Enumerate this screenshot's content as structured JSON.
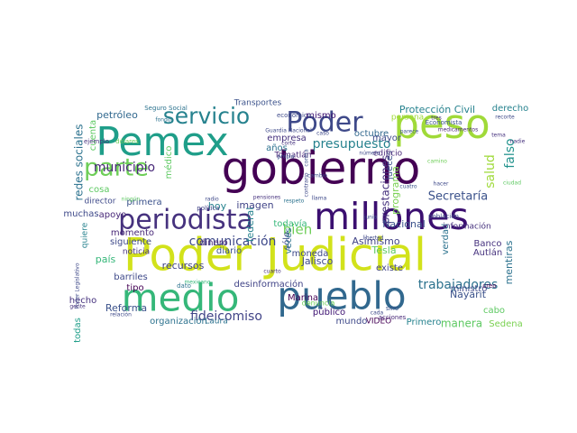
{
  "wordcloud": {
    "words": [
      {
        "text": "gobierno",
        "color": "#440154"
      },
      {
        "text": "Poder Judicial",
        "color": "#d2e21b"
      },
      {
        "text": "millones",
        "color": "#3b0f70"
      },
      {
        "text": "medio",
        "color": "#35b779"
      },
      {
        "text": "pueblo",
        "color": "#31688e"
      },
      {
        "text": "Pemex",
        "color": "#1f9e89"
      },
      {
        "text": "peso",
        "color": "#a0da39"
      },
      {
        "text": "periodista",
        "color": "#46327e"
      },
      {
        "text": "servicio",
        "color": "#26828e"
      },
      {
        "text": "parte",
        "color": "#6ece58"
      },
      {
        "text": "Poder",
        "color": "#3e4989"
      },
      {
        "text": "municipio",
        "color": "#482878"
      },
      {
        "text": "presupuesto",
        "color": "#26828e"
      },
      {
        "text": "comunicación",
        "color": "#3e4989"
      },
      {
        "text": "bien",
        "color": "#6ece58"
      },
      {
        "text": "salud",
        "color": "#9fda3a"
      },
      {
        "text": "falso",
        "color": "#20928c"
      },
      {
        "text": "Secretaría",
        "color": "#3b528b"
      },
      {
        "text": "trabajadores",
        "color": "#2c728e"
      },
      {
        "text": "fideicomiso",
        "color": "#414487"
      },
      {
        "text": "Protección Civil",
        "color": "#26828e"
      },
      {
        "text": "mismo",
        "color": "#3b0f70"
      },
      {
        "text": "octubre",
        "color": "#31688e"
      },
      {
        "text": "mayor",
        "color": "#3e4989"
      },
      {
        "text": "empresa",
        "color": "#46327e"
      },
      {
        "text": "años",
        "color": "#2c728e"
      },
      {
        "text": "Tomatlán",
        "color": "#482878"
      },
      {
        "text": "Transportes",
        "color": "#3b528b"
      },
      {
        "text": "petróleo",
        "color": "#31688e"
      },
      {
        "text": "redes sociales",
        "color": "#2c728e"
      },
      {
        "text": "cuenta",
        "color": "#5ec962"
      },
      {
        "text": "cosa",
        "color": "#5ec962"
      },
      {
        "text": "director",
        "color": "#3e4989"
      },
      {
        "text": "primera",
        "color": "#3b528b"
      },
      {
        "text": "muchas",
        "color": "#3e4989"
      },
      {
        "text": "apoyo",
        "color": "#482878"
      },
      {
        "text": "quiere",
        "color": "#26828e"
      },
      {
        "text": "momento",
        "color": "#482878"
      },
      {
        "text": "siguiente",
        "color": "#3e4989"
      },
      {
        "text": "noticia",
        "color": "#46327e"
      },
      {
        "text": "país",
        "color": "#35b779"
      },
      {
        "text": "recursos",
        "color": "#414487"
      },
      {
        "text": "tipo",
        "color": "#440154"
      },
      {
        "text": "barriles",
        "color": "#3e4989"
      },
      {
        "text": "Reforma",
        "color": "#3b528b"
      },
      {
        "text": "organización",
        "color": "#2c728e"
      },
      {
        "text": "todas",
        "color": "#1f9e89"
      },
      {
        "text": "hecho",
        "color": "#46327e"
      },
      {
        "text": "hoy",
        "color": "#26828e"
      },
      {
        "text": "imagen",
        "color": "#414487"
      },
      {
        "text": "médico",
        "color": "#5ec962"
      },
      {
        "text": "dinero",
        "color": "#482878"
      },
      {
        "text": "diario",
        "color": "#3b528b"
      },
      {
        "text": "federal",
        "color": "#26828e"
      },
      {
        "text": "sólo",
        "color": "#3e4989"
      },
      {
        "text": "todavía",
        "color": "#35b779"
      },
      {
        "text": "Jalisco",
        "color": "#3e4989"
      },
      {
        "text": "moneda",
        "color": "#3e4989"
      },
      {
        "text": "desinformación",
        "color": "#414487"
      },
      {
        "text": "Marina",
        "color": "#440154"
      },
      {
        "text": "público",
        "color": "#3b0f70"
      },
      {
        "text": "Laura",
        "color": "#2c728e"
      },
      {
        "text": "mundo",
        "color": "#3e4989"
      },
      {
        "text": "VIDEO",
        "color": "#440154"
      },
      {
        "text": "Primero",
        "color": "#26828e"
      },
      {
        "text": "manera",
        "color": "#5ec962"
      },
      {
        "text": "Sedena",
        "color": "#7ad151"
      },
      {
        "text": "cabo",
        "color": "#5ec962"
      },
      {
        "text": "Nayarit",
        "color": "#3b528b"
      },
      {
        "text": "ministro",
        "color": "#3e4989"
      },
      {
        "text": "mentiras",
        "color": "#2c728e"
      },
      {
        "text": "Banco",
        "color": "#46327e"
      },
      {
        "text": "Autlán",
        "color": "#46327e"
      },
      {
        "text": "Tesla",
        "color": "#5ec962"
      },
      {
        "text": "Asimismo",
        "color": "#414487"
      },
      {
        "text": "existe",
        "color": "#414487"
      },
      {
        "text": "verdad",
        "color": "#2c728e"
      },
      {
        "text": "jueces",
        "color": "#3b528b"
      },
      {
        "text": "prestaciones",
        "color": "#46327e"
      },
      {
        "text": "programa",
        "color": "#7ad151"
      },
      {
        "text": "Nacional",
        "color": "#3b528b"
      },
      {
        "text": "información",
        "color": "#46327e"
      },
      {
        "text": "edificio",
        "color": "#482878"
      },
      {
        "text": "derecho",
        "color": "#26828e"
      },
      {
        "text": "persona",
        "color": "#a0da39"
      },
      {
        "text": "veces",
        "color": "#2c728e"
      },
      {
        "text": "Seguro Social",
        "color": "#2c728e"
      },
      {
        "text": "fondo",
        "color": "#2c728e"
      },
      {
        "text": "Economista",
        "color": "#3b528b"
      },
      {
        "text": "económico",
        "color": "#3e4989"
      },
      {
        "text": "medicamentos",
        "color": "#482878"
      },
      {
        "text": "dólares",
        "color": "#6ece58"
      },
      {
        "text": "ejemplo",
        "color": "#46327e"
      },
      {
        "text": "ningún",
        "color": "#5ec962"
      },
      {
        "text": "radio",
        "color": "#3e4989"
      },
      {
        "text": "pensiones",
        "color": "#46327e"
      },
      {
        "text": "respeto",
        "color": "#2c728e"
      },
      {
        "text": "política",
        "color": "#414487"
      },
      {
        "text": "mexicano",
        "color": "#35b779"
      },
      {
        "text": "dato",
        "color": "#2c728e"
      },
      {
        "text": "cuarto",
        "color": "#46327e"
      },
      {
        "text": "libertad",
        "color": "#3e4989"
      },
      {
        "text": "cada",
        "color": "#3e4989"
      },
      {
        "text": "creo",
        "color": "#440154"
      },
      {
        "text": "sino",
        "color": "#3b528b"
      },
      {
        "text": "acciones",
        "color": "#482878"
      },
      {
        "text": "denuncia",
        "color": "#6ece58"
      },
      {
        "text": "Poder Legislativo",
        "color": "#3e4989"
      },
      {
        "text": "relación",
        "color": "#3e4989"
      },
      {
        "text": "nadie",
        "color": "#46327e"
      },
      {
        "text": "propia",
        "color": "#3b528b"
      },
      {
        "text": "corte",
        "color": "#46327e"
      },
      {
        "text": "contrario",
        "color": "#3e4989"
      },
      {
        "text": "llama",
        "color": "#3e4989"
      },
      {
        "text": "parece",
        "color": "#3b528b"
      },
      {
        "text": "gente",
        "color": "#46327e"
      },
      {
        "text": "Guardia Nacional",
        "color": "#3e4989"
      },
      {
        "text": "contra",
        "color": "#3b528b"
      },
      {
        "text": "número",
        "color": "#3e4989"
      },
      {
        "text": "ciudad",
        "color": "#5ec962"
      },
      {
        "text": "cuatro",
        "color": "#3b528b"
      },
      {
        "text": "población",
        "color": "#3e4989"
      },
      {
        "text": "camino",
        "color": "#6ece58"
      },
      {
        "text": "hacer",
        "color": "#3e4989"
      },
      {
        "text": "junio",
        "color": "#3b528b"
      },
      {
        "text": "tres",
        "color": "#46327e"
      },
      {
        "text": "recorte",
        "color": "#3e4989"
      },
      {
        "text": "tema",
        "color": "#46327e"
      },
      {
        "text": "cambio",
        "color": "#3b528b"
      },
      {
        "text": "caso",
        "color": "#3e4989"
      }
    ]
  }
}
